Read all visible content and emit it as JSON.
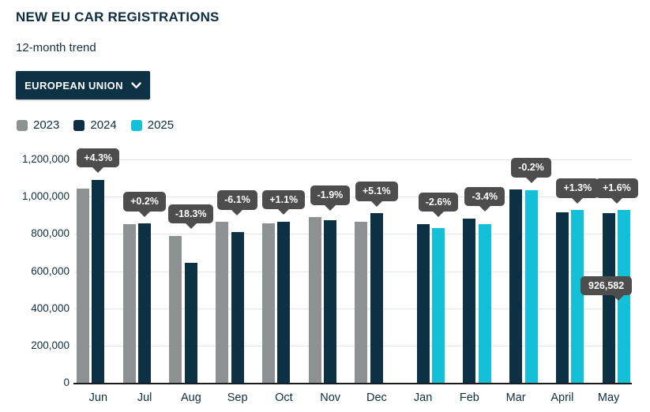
{
  "header": {
    "title": "NEW EU CAR REGISTRATIONS",
    "subtitle": "12-month trend"
  },
  "filter": {
    "label": "EUROPEAN UNION",
    "icon": "chevron-down-icon"
  },
  "colors": {
    "accent_navy": "#0d3246",
    "bar_2023": "#8e9192",
    "bar_2024": "#0c3044",
    "bar_2025": "#13c0d8",
    "tooltip_bg": "#4d4d4d",
    "text_dark": "#0e2e40",
    "gridline": "#e4e4e4",
    "axis_line": "#1c1c1c"
  },
  "chart_data": {
    "type": "bar",
    "title": "NEW EU CAR REGISTRATIONS",
    "xlabel": "",
    "ylabel": "",
    "ylim": [
      0,
      1200000
    ],
    "ytick_step": 200000,
    "ytick_labels": [
      "0",
      "200,000",
      "400,000",
      "600,000",
      "800,000",
      "1,000,000",
      "1,200,000"
    ],
    "grid": true,
    "legend_position": "top-left",
    "categories": [
      "Jun",
      "Jul",
      "Aug",
      "Sep",
      "Oct",
      "Nov",
      "Dec",
      "Jan",
      "Feb",
      "Mar",
      "April",
      "May"
    ],
    "series": [
      {
        "name": "2023",
        "color": "#8e9192",
        "values": [
          1045000,
          853000,
          790000,
          863000,
          857000,
          889000,
          866000,
          null,
          null,
          null,
          null,
          null
        ]
      },
      {
        "name": "2024",
        "color": "#0c3044",
        "values": [
          1090000,
          855000,
          645000,
          810000,
          866000,
          872000,
          910000,
          853000,
          884000,
          1037000,
          915000,
          912000
        ]
      },
      {
        "name": "2025",
        "color": "#13c0d8",
        "values": [
          null,
          null,
          null,
          null,
          null,
          null,
          null,
          831000,
          854000,
          1035000,
          927000,
          926582
        ]
      }
    ],
    "pct_labels": [
      "+4.3%",
      "+0.2%",
      "-18.3%",
      "-6.1%",
      "+1.1%",
      "-1.9%",
      "+5.1%",
      "-2.6%",
      "-3.4%",
      "-0.2%",
      "+1.3%",
      "+1.6%"
    ],
    "value_callout": {
      "category": "May",
      "series": "2025",
      "text": "926,582"
    }
  }
}
